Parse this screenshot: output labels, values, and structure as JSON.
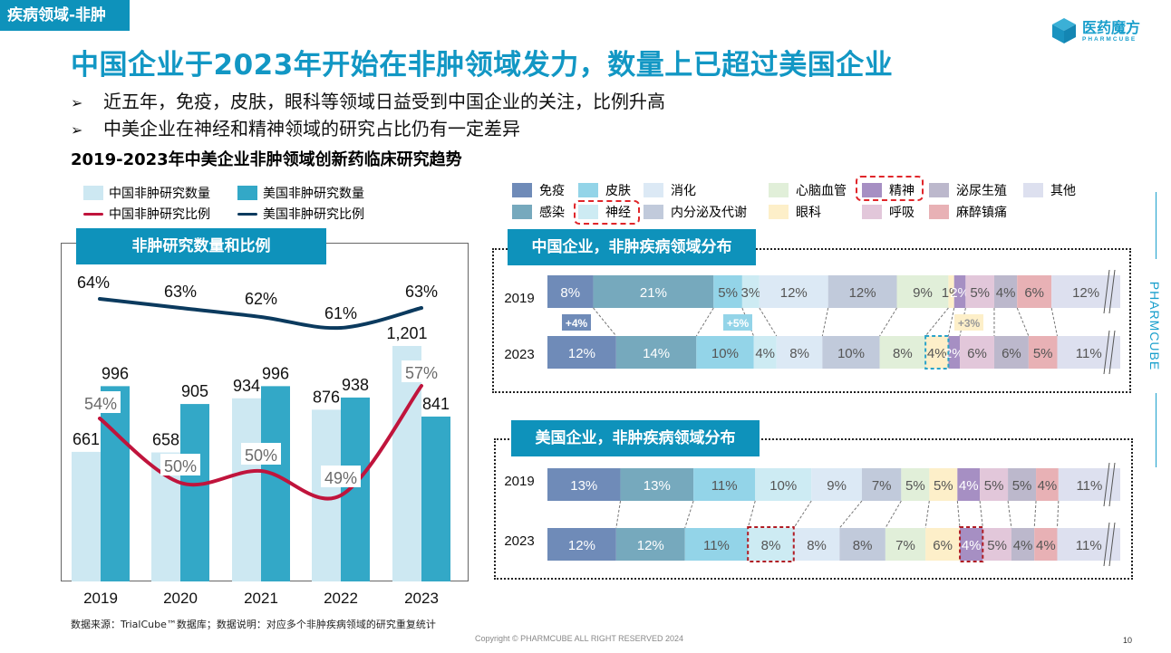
{
  "header": {
    "tag": "疾病领域-非肿",
    "logo_cn": "医药魔方",
    "logo_en": "PHARMCUBE",
    "title": "中国企业于2023年开始在非肿领域发力，数量上已超过美国企业",
    "bullets": [
      "近五年，免疫，皮肤，眼科等领域日益受到中国企业的关注，比例升高",
      "中美企业在神经和精神领域的研究占比仍有一定差异"
    ],
    "bullet_icon": "arrowhead-bullet-icon",
    "subtitle": "2019-2023年中美企业非肿领域创新药临床研究趋势"
  },
  "colors": {
    "brand": "#0e92bb",
    "cn_bar": "#cde8f2",
    "us_bar": "#33a8c7",
    "cn_line": "#c0143c",
    "us_line": "#0b3a5e",
    "highlight": "#e0262a"
  },
  "chart_data": [
    {
      "type": "bar",
      "title": "非肿研究数量和比例",
      "categories": [
        "2019",
        "2020",
        "2021",
        "2022",
        "2023"
      ],
      "series": [
        {
          "name": "中国非肿研究数量",
          "kind": "bar",
          "values": [
            661,
            658,
            934,
            876,
            1201
          ],
          "labels": [
            "661",
            "658",
            "934",
            "876",
            "1,201"
          ]
        },
        {
          "name": "美国非肿研究数量",
          "kind": "bar",
          "values": [
            996,
            905,
            996,
            938,
            841
          ],
          "labels": [
            "996",
            "905",
            "996",
            "938",
            "841"
          ]
        },
        {
          "name": "中国非肿研究比例",
          "kind": "line",
          "values": [
            54,
            50,
            50,
            49,
            57
          ],
          "labels": [
            "54%",
            "50%",
            "50%",
            "49%",
            "57%"
          ]
        },
        {
          "name": "美国非肿研究比例",
          "kind": "line",
          "values": [
            64,
            63,
            62,
            61,
            63
          ],
          "labels": [
            "64%",
            "63%",
            "62%",
            "61%",
            "63%"
          ]
        }
      ],
      "legend_position": "top-left"
    },
    {
      "type": "bar",
      "stacked": "100%",
      "title": "中国企业，非肿疾病领域分布",
      "categories": [
        "免疫",
        "感染",
        "皮肤",
        "神经",
        "消化",
        "内分泌及代谢",
        "心脑血管",
        "眼科",
        "精神",
        "呼吸",
        "泌尿生殖",
        "麻醉镇痛",
        "其他"
      ],
      "rows": [
        {
          "year": "2019",
          "values": [
            8,
            21,
            5,
            3,
            12,
            12,
            9,
            1,
            2,
            5,
            4,
            6,
            12
          ]
        },
        {
          "year": "2023",
          "values": [
            12,
            14,
            10,
            4,
            8,
            10,
            8,
            4,
            2,
            6,
            6,
            5,
            11
          ]
        }
      ],
      "change_annotations": [
        {
          "category": "免疫",
          "text": "+4%"
        },
        {
          "category": "皮肤",
          "text": "+5%"
        },
        {
          "category": "眼科",
          "text": "+3%"
        }
      ]
    },
    {
      "type": "bar",
      "stacked": "100%",
      "title": "美国企业，非肿疾病领域分布",
      "categories": [
        "免疫",
        "感染",
        "皮肤",
        "神经",
        "消化",
        "内分泌及代谢",
        "心脑血管",
        "眼科",
        "精神",
        "呼吸",
        "泌尿生殖",
        "麻醉镇痛",
        "其他"
      ],
      "rows": [
        {
          "year": "2019",
          "values": [
            13,
            13,
            11,
            10,
            9,
            7,
            5,
            5,
            4,
            5,
            5,
            4,
            11
          ]
        },
        {
          "year": "2023",
          "values": [
            12,
            12,
            11,
            8,
            8,
            8,
            7,
            6,
            4,
            5,
            4,
            4,
            11
          ]
        }
      ],
      "highlighted": [
        "神经",
        "精神"
      ]
    }
  ],
  "area_legend": [
    {
      "name": "免疫",
      "color": "#6f8bb8"
    },
    {
      "name": "皮肤",
      "color": "#93d4e8"
    },
    {
      "name": "消化",
      "color": "#dce9f5"
    },
    {
      "name": "心脑血管",
      "color": "#e1efd9"
    },
    {
      "name": "精神",
      "color": "#a68fc3",
      "highlighted": true
    },
    {
      "name": "泌尿生殖",
      "color": "#bcb8cc"
    },
    {
      "name": "其他",
      "color": "#dde0ef"
    },
    {
      "name": "感染",
      "color": "#76a9bd"
    },
    {
      "name": "神经",
      "color": "#cdebf3",
      "highlighted": true
    },
    {
      "name": "内分泌及代谢",
      "color": "#c1cadb"
    },
    {
      "name": "眼科",
      "color": "#fdefc9"
    },
    {
      "name": "呼吸",
      "color": "#e2c7da"
    },
    {
      "name": "麻醉镇痛",
      "color": "#e8b1b5"
    }
  ],
  "footer": {
    "note": "数据来源：TrialCube™数据库；数据说明：对应多个非肿疾病领域的研究重复统计",
    "copyright": "Copyright © PHARMCUBE ALL RIGHT RESERVED 2024",
    "page": "10",
    "side_brand": "PHARMCUBE"
  }
}
